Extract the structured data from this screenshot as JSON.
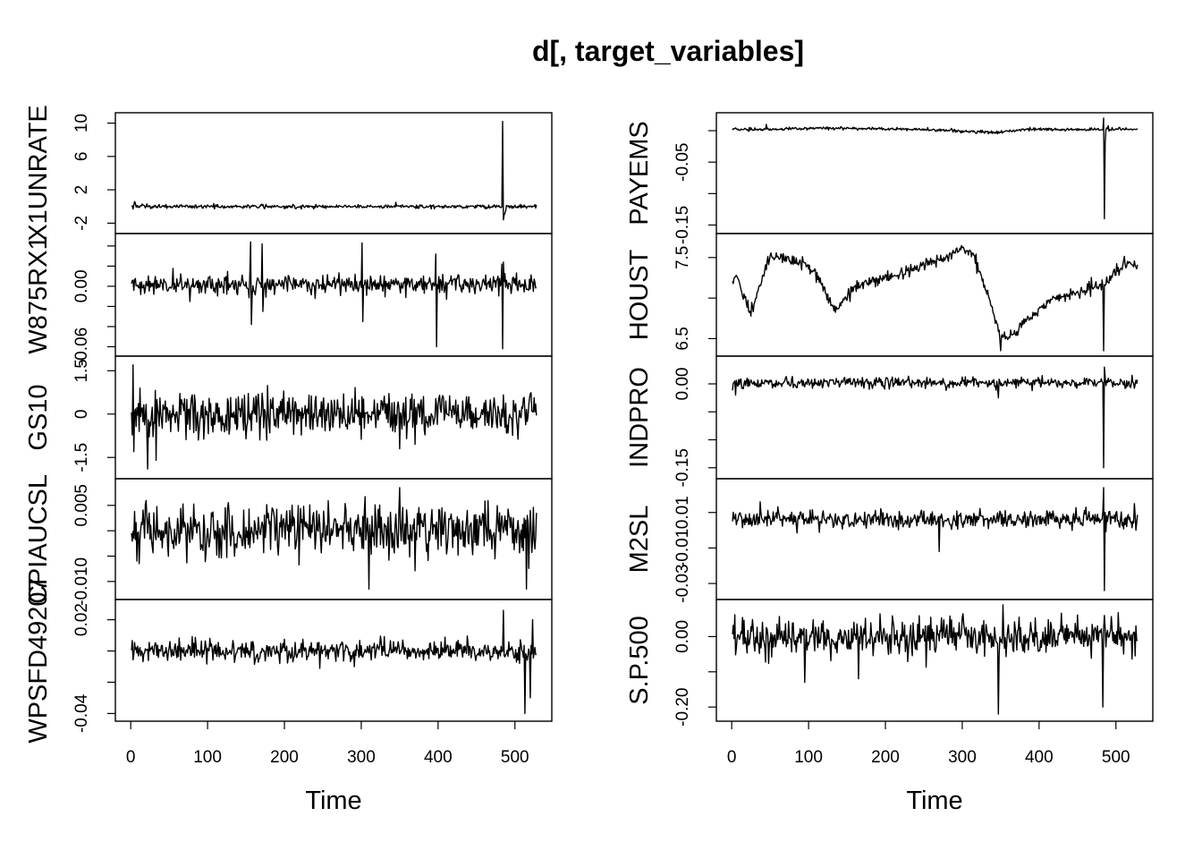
{
  "chart_data": {
    "type": "line",
    "title": "d[, target_variables]",
    "xlabel": "Time",
    "x_range": [
      1,
      528
    ],
    "x_ticks": [
      0,
      100,
      200,
      300,
      400,
      500
    ],
    "grid": false,
    "columns": [
      {
        "panels": [
          {
            "name": "X1UNRATE",
            "ylim": [
              -2.6,
              10.6
            ],
            "yticks": [
              -2,
              2,
              6,
              10
            ],
            "base": 0.0,
            "noise": 0.12,
            "trend": [
              [
                1,
                0.0
              ],
              [
                528,
                0.0
              ]
            ],
            "spikes": [
              [
                5,
                0.6
              ],
              [
                6,
                0.4
              ],
              [
                15,
                0.3
              ],
              [
                345,
                0.5
              ],
              [
                484,
                10.2
              ],
              [
                485,
                -1.6
              ],
              [
                486,
                -1.0
              ],
              [
                487,
                -0.8
              ],
              [
                488,
                -0.5
              ]
            ]
          },
          {
            "name": "W875RX1",
            "ylim": [
              -0.064,
              0.047
            ],
            "yticks": [
              -0.06,
              -0.04,
              -0.02,
              0.0,
              0.02,
              0.04
            ],
            "yticklabels": [
              "-0.06",
              "",
              "",
              "0.00",
              "",
              ""
            ],
            "base": 0.002,
            "noise": 0.005,
            "trend": [
              [
                1,
                0.0
              ],
              [
                528,
                0.0
              ]
            ],
            "spikes": [
              [
                156,
                0.044
              ],
              [
                157,
                -0.038
              ],
              [
                171,
                0.042
              ],
              [
                172,
                -0.025
              ],
              [
                301,
                0.043
              ],
              [
                302,
                -0.035
              ],
              [
                397,
                0.032
              ],
              [
                398,
                -0.06
              ],
              [
                483,
                0.022
              ],
              [
                484,
                -0.062
              ],
              [
                485,
                0.024
              ]
            ]
          },
          {
            "name": "GS10",
            "ylim": [
              -2.05,
              1.82
            ],
            "yticks": [
              -1.5,
              0.0,
              1.5
            ],
            "base": 0.0,
            "noise": 0.38,
            "trend": [
              [
                1,
                0.0
              ],
              [
                528,
                0.0
              ]
            ],
            "spikes": [
              [
                3,
                1.7
              ],
              [
                4,
                -1.3
              ],
              [
                12,
                0.9
              ],
              [
                22,
                -1.9
              ],
              [
                33,
                -1.6
              ],
              [
                350,
                -1.2
              ],
              [
                520,
                0.7
              ]
            ]
          },
          {
            "name": "CPIAUCSL",
            "ylim": [
              -0.0125,
              0.0092
            ],
            "yticks": [
              -0.01,
              -0.005,
              0.0,
              0.005
            ],
            "yticklabels": [
              "-0.010",
              "",
              "",
              "0.005"
            ],
            "base": 0.0,
            "noise": 0.0025,
            "trend": [
              [
                1,
                0.0
              ],
              [
                528,
                0.0
              ]
            ],
            "spikes": [
              [
                8,
                -0.006
              ],
              [
                310,
                -0.0115
              ],
              [
                350,
                0.0085
              ],
              [
                515,
                -0.0115
              ],
              [
                520,
                0.004
              ]
            ]
          },
          {
            "name": "WPSFD49207",
            "ylim": [
              -0.0415,
              0.0295
            ],
            "yticks": [
              -0.04,
              -0.02,
              0.0,
              0.02
            ],
            "yticklabels": [
              "-0.04",
              "",
              "",
              "0.02"
            ],
            "base": 0.0,
            "noise": 0.0035,
            "trend": [
              [
                1,
                0.0
              ],
              [
                528,
                0.0
              ]
            ],
            "spikes": [
              [
                485,
                0.026
              ],
              [
                513,
                -0.04
              ],
              [
                520,
                -0.03
              ],
              [
                523,
                0.02
              ]
            ]
          }
        ]
      },
      {
        "panels": [
          {
            "name": "PAYEMS",
            "ylim": [
              -0.155,
              0.02
            ],
            "yticks": [
              -0.15,
              -0.1,
              -0.05,
              0.0
            ],
            "yticklabels": [
              "-0.15",
              "",
              "-0.05",
              ""
            ],
            "base": 0.002,
            "noise": 0.0012,
            "trend": [
              [
                1,
                0.0
              ],
              [
                40,
                0.0
              ],
              [
                120,
                0.002
              ],
              [
                250,
                0.0
              ],
              [
                345,
                -0.005
              ],
              [
                380,
                0.0
              ],
              [
                528,
                0.0
              ]
            ],
            "spikes": [
              [
                45,
                0.01
              ],
              [
                484,
                0.025
              ],
              [
                485,
                -0.14
              ],
              [
                486,
                -0.02
              ],
              [
                490,
                0.008
              ]
            ]
          },
          {
            "name": "HOUST",
            "ylim": [
              6.35,
              7.73
            ],
            "yticks": [
              6.5,
              7.0,
              7.5
            ],
            "yticklabels": [
              "6.5",
              "",
              "7.5"
            ],
            "base": 0.0,
            "noise": 0.035,
            "trend": [
              [
                1,
                7.2
              ],
              [
                5,
                7.3
              ],
              [
                15,
                7.05
              ],
              [
                25,
                6.8
              ],
              [
                35,
                7.1
              ],
              [
                50,
                7.5
              ],
              [
                70,
                7.5
              ],
              [
                90,
                7.45
              ],
              [
                110,
                7.3
              ],
              [
                135,
                6.85
              ],
              [
                155,
                7.1
              ],
              [
                200,
                7.25
              ],
              [
                250,
                7.4
              ],
              [
                300,
                7.6
              ],
              [
                315,
                7.55
              ],
              [
                335,
                7.0
              ],
              [
                350,
                6.5
              ],
              [
                365,
                6.55
              ],
              [
                385,
                6.75
              ],
              [
                420,
                7.0
              ],
              [
                480,
                7.15
              ],
              [
                500,
                7.3
              ],
              [
                515,
                7.45
              ],
              [
                528,
                7.4
              ]
            ],
            "spikes": [
              [
                350,
                -0.1
              ],
              [
                484,
                -0.1
              ]
            ]
          },
          {
            "name": "INDPRO",
            "ylim": [
              -0.16,
              0.04
            ],
            "yticks": [
              -0.15,
              -0.1,
              -0.05,
              0.0
            ],
            "yticklabels": [
              "-0.15",
              "",
              "",
              "0.00"
            ],
            "base": 0.002,
            "noise": 0.005,
            "trend": [
              [
                1,
                0.0
              ],
              [
                528,
                0.0
              ]
            ],
            "spikes": [
              [
                5,
                -0.02
              ],
              [
                20,
                0.01
              ],
              [
                347,
                -0.025
              ],
              [
                484,
                -0.15
              ],
              [
                485,
                0.03
              ],
              [
                486,
                0.012
              ],
              [
                490,
                0.01
              ]
            ]
          },
          {
            "name": "M2SL",
            "ylim": [
              -0.036,
              0.026
            ],
            "yticks": [
              -0.03,
              -0.01,
              0.01
            ],
            "base": 0.006,
            "noise": 0.0025,
            "trend": [
              [
                1,
                0.0
              ],
              [
                528,
                0.0
              ]
            ],
            "spikes": [
              [
                37,
                0.016
              ],
              [
                270,
                -0.012
              ],
              [
                484,
                0.024
              ],
              [
                485,
                -0.034
              ],
              [
                486,
                0.01
              ],
              [
                524,
                0.015
              ]
            ]
          },
          {
            "name": "S.P.500",
            "ylim": [
              -0.225,
              0.09
            ],
            "yticks": [
              -0.2,
              -0.1,
              0.0
            ],
            "yticklabels": [
              "-0.20",
              "",
              "0.00"
            ],
            "base": 0.0,
            "noise": 0.025,
            "trend": [
              [
                1,
                0.0
              ],
              [
                528,
                0.0
              ]
            ],
            "spikes": [
              [
                95,
                -0.13
              ],
              [
                165,
                -0.12
              ],
              [
                347,
                -0.22
              ],
              [
                353,
                0.1
              ],
              [
                483,
                -0.2
              ],
              [
                485,
                0.06
              ]
            ]
          }
        ]
      }
    ]
  }
}
